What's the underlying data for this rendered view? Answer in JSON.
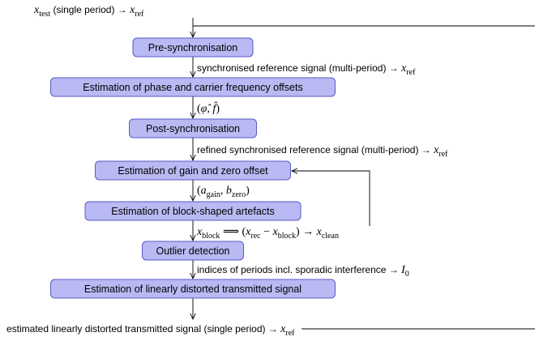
{
  "input_label": [
    {
      "math": "x"
    },
    {
      "sub": "test"
    },
    {
      "text": " (single period) → "
    },
    {
      "math": "x"
    },
    {
      "sub": "ref"
    }
  ],
  "nodes": [
    {
      "label": "Pre-synchronisation"
    },
    {
      "label": "Estimation of phase and carrier frequency offsets"
    },
    {
      "label": "Post-synchronisation"
    },
    {
      "label": "Estimation of gain and zero offset"
    },
    {
      "label": "Estimation of block-shaped artefacts"
    },
    {
      "label": "Outlier detection"
    },
    {
      "label": "Estimation of linearly distorted transmitted signal"
    }
  ],
  "edge_labels": [
    [
      {
        "text": "synchronised reference signal (multi-period) → "
      },
      {
        "math": "x"
      },
      {
        "sub": "ref"
      }
    ],
    [
      {
        "mathup": "("
      },
      {
        "math": "φ̂"
      },
      {
        "mathup": ", "
      },
      {
        "math": "f̂"
      },
      {
        "mathup": ")"
      }
    ],
    [
      {
        "text": "refined synchronised reference signal (multi-period) → "
      },
      {
        "math": "x"
      },
      {
        "sub": "ref"
      }
    ],
    [
      {
        "mathup": "("
      },
      {
        "math": "a"
      },
      {
        "sub": "gain"
      },
      {
        "mathup": ", "
      },
      {
        "math": "b"
      },
      {
        "sub": "zero"
      },
      {
        "mathup": ")"
      }
    ],
    [
      {
        "math": "x"
      },
      {
        "sub": "block"
      },
      {
        "mathup": " ⟹ ("
      },
      {
        "math": "x"
      },
      {
        "sub": "rec"
      },
      {
        "mathup": " − "
      },
      {
        "math": "x"
      },
      {
        "sub": "block"
      },
      {
        "mathup": ") → "
      },
      {
        "math": "x"
      },
      {
        "sub": "clean"
      }
    ],
    [
      {
        "text": "indices of periods incl. sporadic interference → "
      },
      {
        "math": "I"
      },
      {
        "sub": "0"
      }
    ]
  ],
  "output_label": [
    {
      "text": "estimated linearly distorted transmitted signal (single period) → "
    },
    {
      "math": "x"
    },
    {
      "sub": "ref"
    }
  ]
}
